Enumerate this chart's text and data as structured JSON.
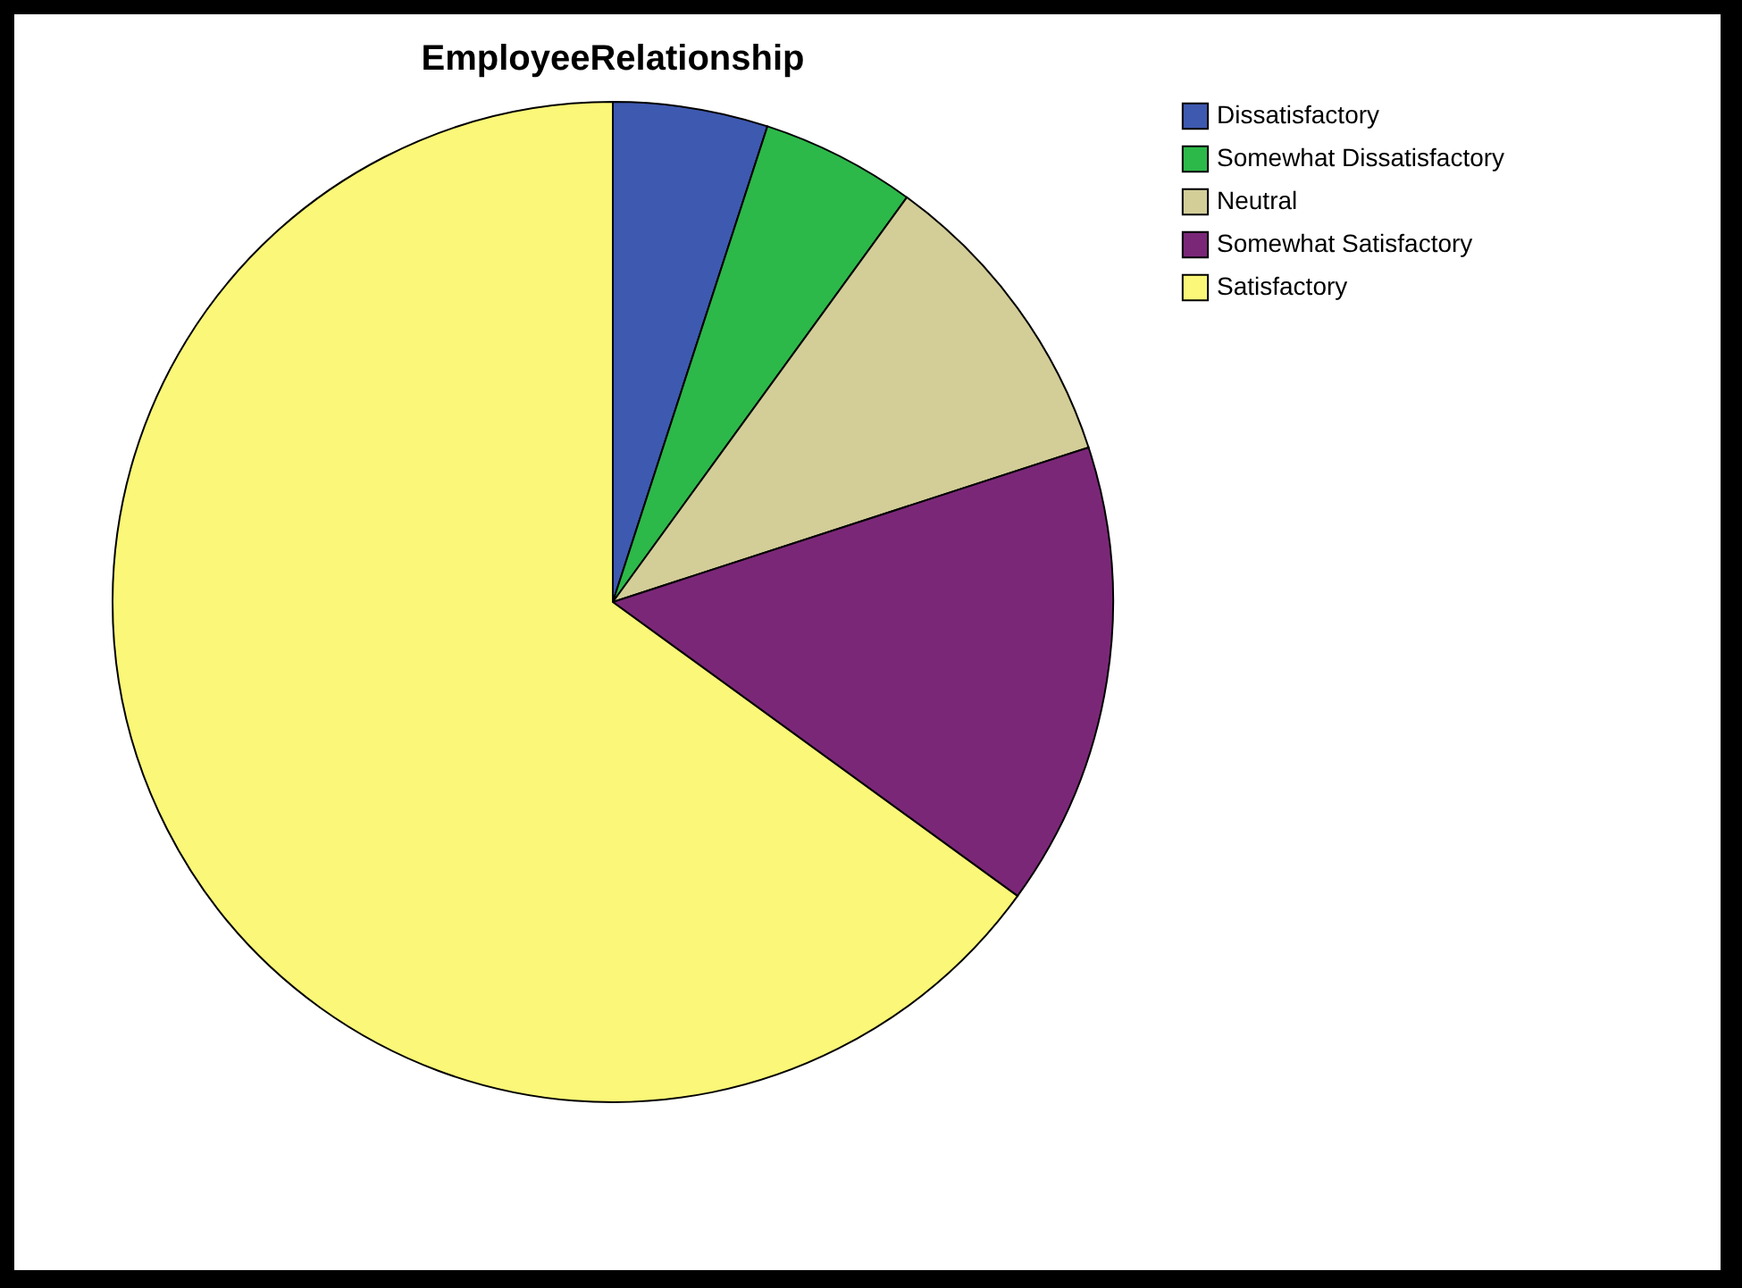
{
  "chart_data": {
    "type": "pie",
    "title": "EmployeeRelationship",
    "categories": [
      "Dissatisfactory",
      "Somewhat Dissatisfactory",
      "Neutral",
      "Somewhat Satisfactory",
      "Satisfactory"
    ],
    "values": [
      5,
      5,
      10,
      15,
      65
    ],
    "colors": [
      "#3e59b0",
      "#2db84a",
      "#d3cd98",
      "#7b2778",
      "#fbf778"
    ],
    "legend": "top right"
  }
}
